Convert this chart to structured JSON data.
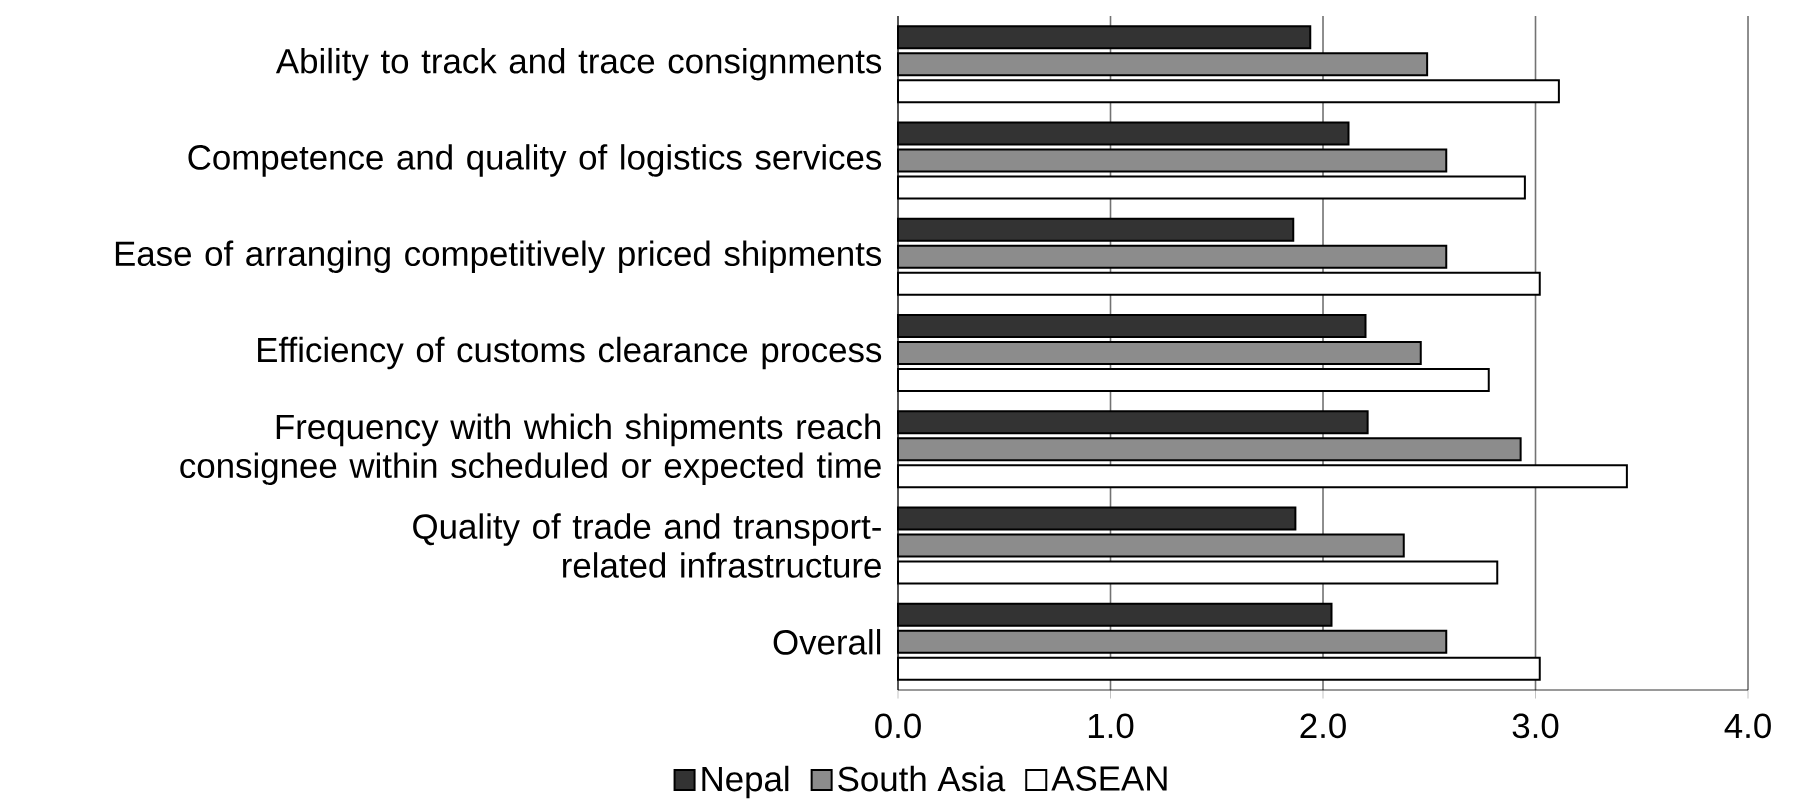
{
  "chart_data": {
    "type": "bar",
    "orientation": "horizontal",
    "categories": [
      "Ability to track and trace consignments",
      "Competence and quality of logistics services",
      "Ease of arranging competitively priced shipments",
      "Efficiency of customs clearance process",
      "Frequency with which shipments reach consignee within scheduled or expected time",
      "Quality of trade and transport-related infrastructure",
      "Overall"
    ],
    "series": [
      {
        "name": "Nepal",
        "color": "#333333",
        "values": [
          1.94,
          2.12,
          1.86,
          2.2,
          2.21,
          1.87,
          2.04
        ]
      },
      {
        "name": "South Asia",
        "color": "#8c8c8c",
        "values": [
          2.49,
          2.58,
          2.58,
          2.46,
          2.93,
          2.38,
          2.58
        ]
      },
      {
        "name": "ASEAN",
        "color": "#ffffff",
        "values": [
          3.11,
          2.95,
          3.02,
          2.78,
          3.43,
          2.82,
          3.02
        ]
      }
    ],
    "xlim": [
      0,
      4
    ],
    "xticks": [
      {
        "value": 0,
        "label": "0.0"
      },
      {
        "value": 1,
        "label": "1.0"
      },
      {
        "value": 2,
        "label": "2.0"
      },
      {
        "value": 3,
        "label": "3.0"
      },
      {
        "value": 4,
        "label": "4.0"
      }
    ],
    "grid": "x",
    "legend": "bottom"
  }
}
